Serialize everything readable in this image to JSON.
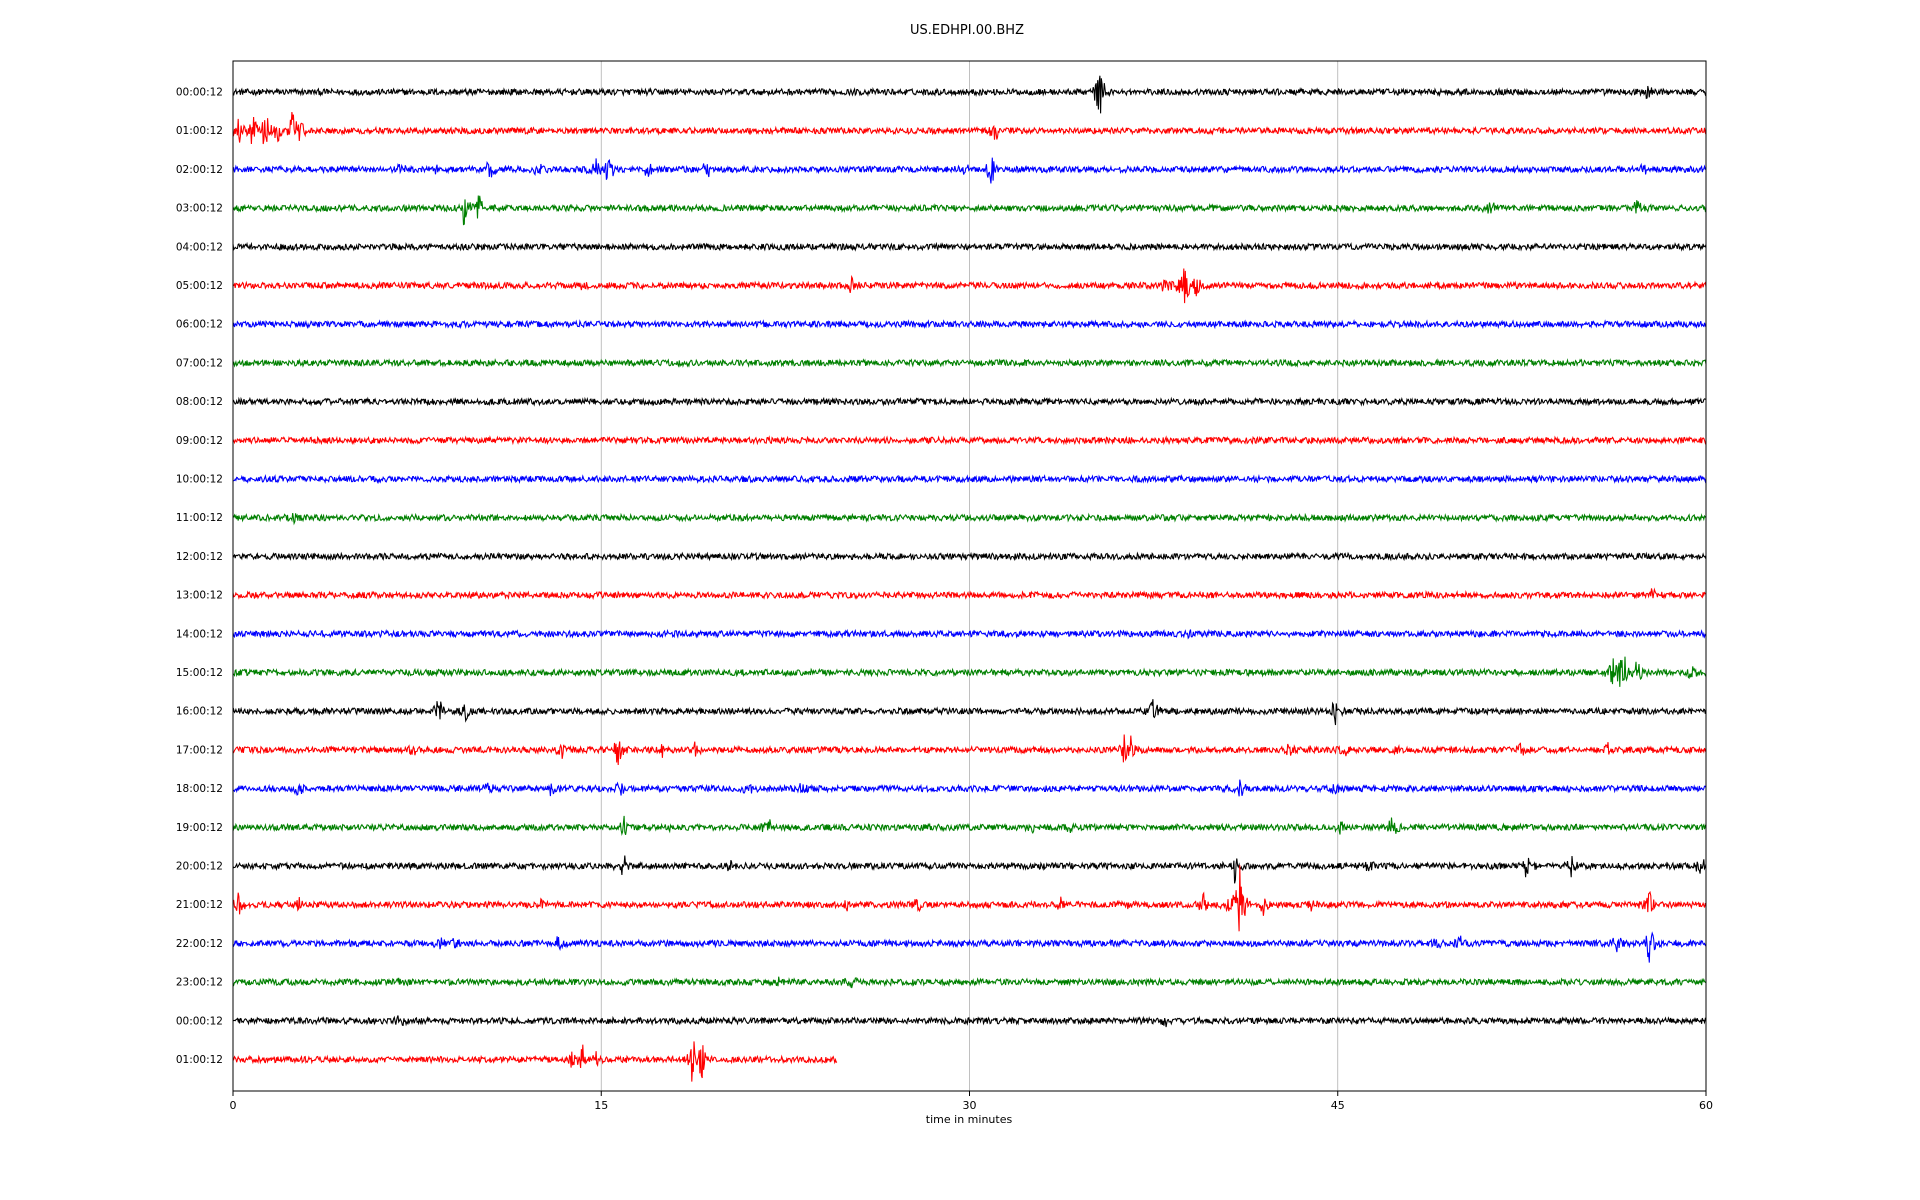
{
  "chart_data": {
    "type": "line",
    "title": "US.EDHPI.00.BHZ",
    "xlabel": "time in minutes",
    "ylabel": "",
    "xlim": [
      0,
      60
    ],
    "xticks": [
      0,
      15,
      30,
      45,
      60
    ],
    "grid": "vertical",
    "trace_colors": [
      "#000000",
      "#ff0000",
      "#0000ff",
      "#008000"
    ],
    "series": [
      {
        "label": "00:00:12",
        "end": 60,
        "events": [
          [
            35.3,
            2.5
          ],
          [
            57.6,
            0.9
          ]
        ]
      },
      {
        "label": "01:00:12",
        "end": 60,
        "events": [
          [
            0.2,
            1.6
          ],
          [
            0.8,
            1.8
          ],
          [
            1.3,
            2.2
          ],
          [
            1.8,
            1.4
          ],
          [
            2.4,
            1.8
          ],
          [
            2.7,
            1.5
          ],
          [
            31.0,
            1.8
          ]
        ]
      },
      {
        "label": "02:00:12",
        "end": 60,
        "events": [
          [
            6.8,
            0.8
          ],
          [
            8.2,
            0.9
          ],
          [
            10.5,
            1.0
          ],
          [
            12.5,
            0.8
          ],
          [
            14.8,
            1.4
          ],
          [
            15.3,
            1.6
          ],
          [
            16.9,
            1.2
          ],
          [
            19.3,
            0.8
          ],
          [
            29.8,
            0.7
          ],
          [
            30.9,
            1.5
          ],
          [
            57.4,
            0.6
          ]
        ]
      },
      {
        "label": "03:00:12",
        "end": 60,
        "events": [
          [
            9.4,
            1.7
          ],
          [
            10.0,
            1.4
          ],
          [
            51.2,
            0.9
          ],
          [
            57.2,
            1.0
          ]
        ]
      },
      {
        "label": "04:00:12",
        "end": 60,
        "events": []
      },
      {
        "label": "05:00:12",
        "end": 60,
        "events": [
          [
            14.3,
            0.4
          ],
          [
            25.2,
            0.8
          ],
          [
            38.0,
            1.0
          ],
          [
            38.8,
            3.0
          ],
          [
            39.2,
            1.5
          ]
        ]
      },
      {
        "label": "06:00:12",
        "end": 60,
        "events": []
      },
      {
        "label": "07:00:12",
        "end": 60,
        "events": []
      },
      {
        "label": "08:00:12",
        "end": 60,
        "events": []
      },
      {
        "label": "09:00:12",
        "end": 60,
        "events": []
      },
      {
        "label": "10:00:12",
        "end": 60,
        "events": []
      },
      {
        "label": "11:00:12",
        "end": 60,
        "events": [
          [
            2.4,
            0.5
          ]
        ]
      },
      {
        "label": "12:00:12",
        "end": 60,
        "events": []
      },
      {
        "label": "13:00:12",
        "end": 60,
        "events": [
          [
            57.8,
            0.7
          ]
        ]
      },
      {
        "label": "14:00:12",
        "end": 60,
        "events": [
          [
            39.0,
            0.5
          ]
        ]
      },
      {
        "label": "15:00:12",
        "end": 60,
        "events": [
          [
            56.2,
            1.6
          ],
          [
            56.6,
            3.2
          ],
          [
            57.2,
            1.2
          ],
          [
            59.4,
            1.1
          ]
        ]
      },
      {
        "label": "16:00:12",
        "end": 60,
        "events": [
          [
            8.4,
            1.4
          ],
          [
            9.5,
            1.0
          ],
          [
            37.5,
            1.2
          ],
          [
            44.9,
            1.5
          ]
        ]
      },
      {
        "label": "17:00:12",
        "end": 60,
        "events": [
          [
            7.4,
            0.7
          ],
          [
            13.4,
            0.9
          ],
          [
            15.7,
            1.6
          ],
          [
            17.5,
            0.8
          ],
          [
            18.8,
            0.8
          ],
          [
            36.3,
            1.5
          ],
          [
            36.6,
            1.1
          ],
          [
            43.0,
            0.7
          ],
          [
            45.4,
            0.7
          ],
          [
            47.3,
            0.6
          ],
          [
            52.5,
            0.7
          ],
          [
            56.0,
            0.6
          ]
        ]
      },
      {
        "label": "18:00:12",
        "end": 60,
        "events": [
          [
            2.7,
            0.8
          ],
          [
            10.4,
            0.8
          ],
          [
            13.0,
            0.9
          ],
          [
            15.8,
            1.1
          ],
          [
            21.0,
            0.6
          ],
          [
            23.2,
            0.7
          ],
          [
            41.0,
            1.0
          ],
          [
            44.9,
            0.6
          ]
        ]
      },
      {
        "label": "19:00:12",
        "end": 60,
        "events": [
          [
            15.9,
            1.1
          ],
          [
            17.8,
            0.6
          ],
          [
            21.8,
            1.0
          ],
          [
            32.6,
            0.7
          ],
          [
            34.1,
            0.6
          ],
          [
            45.1,
            0.7
          ],
          [
            47.2,
            1.3
          ]
        ]
      },
      {
        "label": "20:00:12",
        "end": 60,
        "events": [
          [
            15.9,
            1.2
          ],
          [
            20.3,
            0.8
          ],
          [
            40.8,
            1.4
          ],
          [
            46.3,
            0.7
          ],
          [
            52.7,
            1.2
          ],
          [
            54.5,
            1.2
          ],
          [
            59.8,
            1.1
          ]
        ]
      },
      {
        "label": "21:00:12",
        "end": 60,
        "events": [
          [
            0.2,
            1.4
          ],
          [
            2.7,
            0.6
          ],
          [
            12.5,
            0.6
          ],
          [
            25.0,
            0.7
          ],
          [
            27.9,
            1.2
          ],
          [
            33.7,
            0.7
          ],
          [
            36.4,
            0.7
          ],
          [
            39.5,
            1.3
          ],
          [
            40.6,
            1.4
          ],
          [
            41.0,
            4.0
          ],
          [
            42.0,
            1.0
          ],
          [
            43.9,
            0.7
          ],
          [
            51.2,
            0.5
          ],
          [
            57.7,
            1.6
          ]
        ]
      },
      {
        "label": "22:00:12",
        "end": 60,
        "events": [
          [
            8.4,
            0.8
          ],
          [
            9.1,
            0.9
          ],
          [
            13.3,
            0.8
          ],
          [
            49.1,
            0.6
          ],
          [
            50.0,
            0.6
          ],
          [
            56.4,
            1.0
          ],
          [
            57.7,
            2.2
          ],
          [
            58.8,
            0.5
          ]
        ]
      },
      {
        "label": "23:00:12",
        "end": 60,
        "events": [
          [
            6.9,
            0.6
          ],
          [
            22.2,
            0.6
          ],
          [
            25.2,
            0.8
          ]
        ]
      },
      {
        "label": "00:00:12",
        "end": 60,
        "events": [
          [
            6.8,
            0.8
          ],
          [
            38.0,
            0.6
          ]
        ]
      },
      {
        "label": "01:00:12",
        "end": 24.6,
        "events": [
          [
            13.8,
            1.1
          ],
          [
            14.2,
            1.7
          ],
          [
            14.8,
            0.8
          ],
          [
            16.2,
            0.8
          ],
          [
            18.7,
            2.5
          ],
          [
            19.1,
            1.8
          ]
        ]
      }
    ]
  }
}
